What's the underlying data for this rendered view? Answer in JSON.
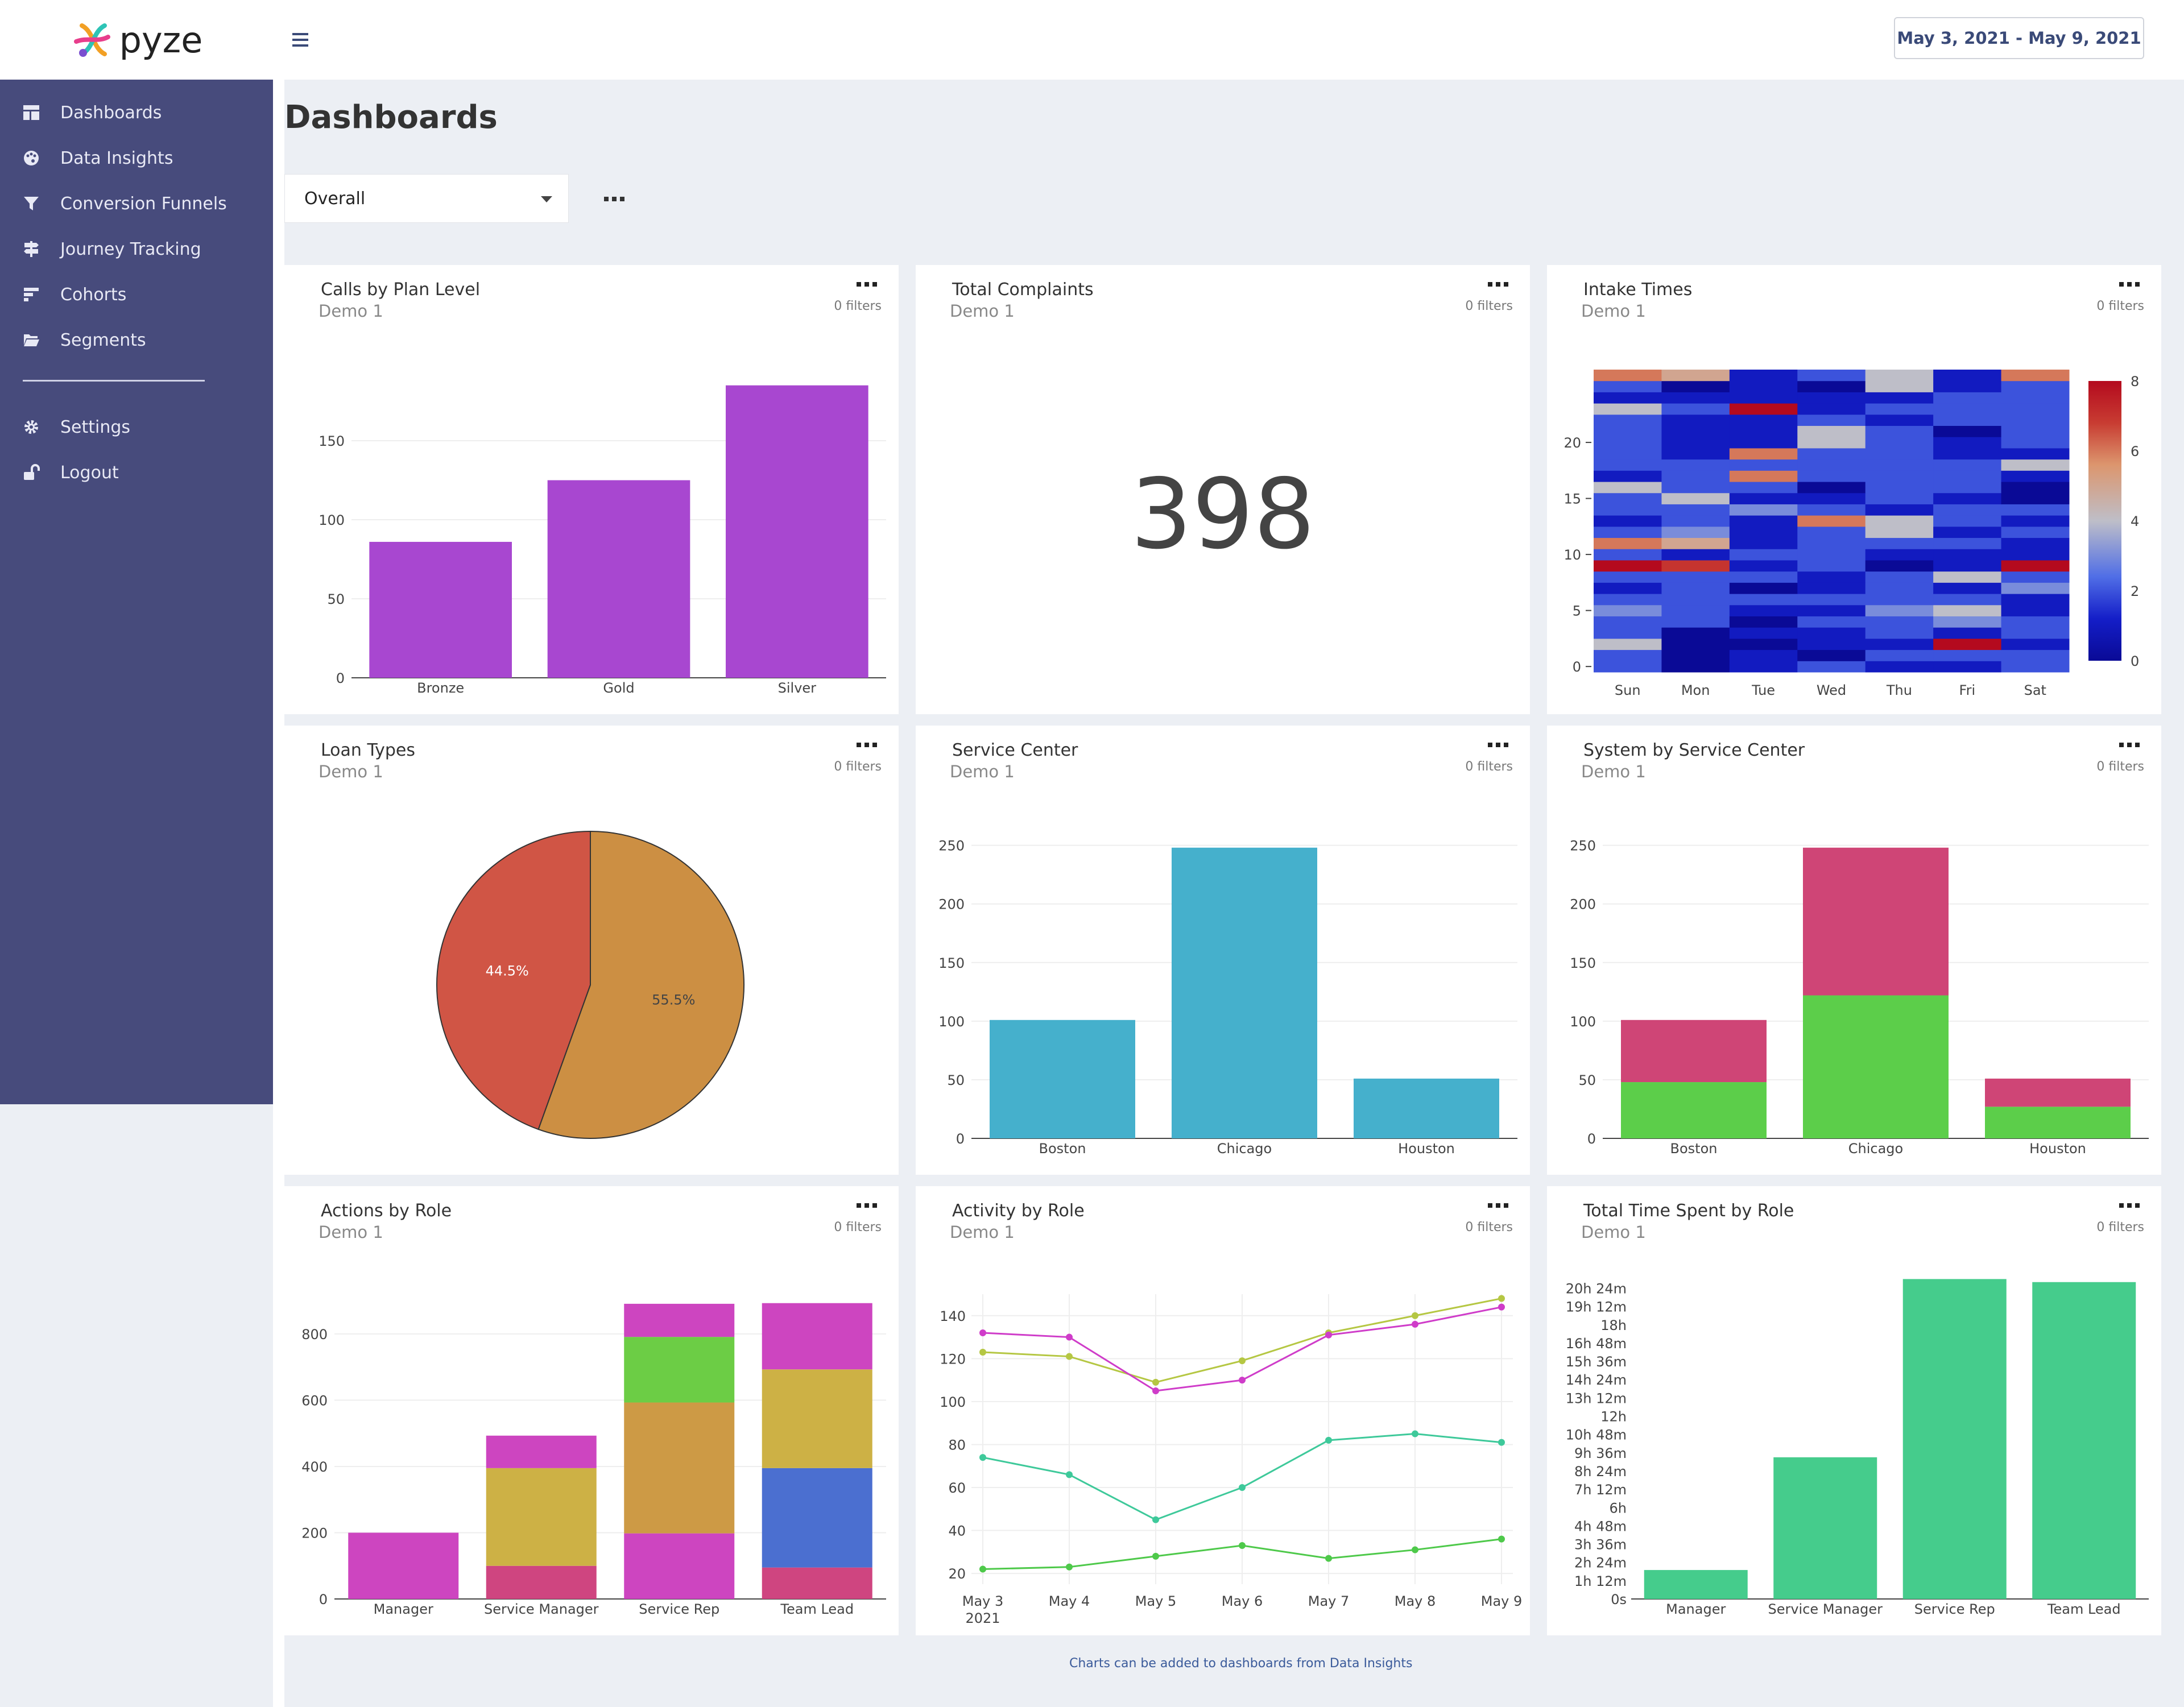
{
  "app": {
    "name": "pyze"
  },
  "sidebar": {
    "items": [
      {
        "label": "Dashboards",
        "icon": "dashboard-icon"
      },
      {
        "label": "Data Insights",
        "icon": "palette-icon"
      },
      {
        "label": "Conversion Funnels",
        "icon": "funnel-icon"
      },
      {
        "label": "Journey Tracking",
        "icon": "signpost-icon"
      },
      {
        "label": "Cohorts",
        "icon": "cohorts-icon"
      },
      {
        "label": "Segments",
        "icon": "folder-open-icon"
      }
    ],
    "bottom_items": [
      {
        "label": "Settings",
        "icon": "gear-icon"
      },
      {
        "label": "Logout",
        "icon": "unlock-icon"
      }
    ]
  },
  "header": {
    "date_range": "May 3, 2021 - May 9, 2021",
    "title": "Dashboards"
  },
  "view_select": {
    "value": "Overall"
  },
  "footer_note": "Charts can be added to dashboards from Data Insights",
  "cards": [
    {
      "title": "Calls by Plan Level",
      "subtitle": "Demo 1",
      "filters": "0 filters"
    },
    {
      "title": "Total Complaints",
      "subtitle": "Demo 1",
      "filters": "0 filters",
      "value": "398"
    },
    {
      "title": "Intake Times",
      "subtitle": "Demo 1",
      "filters": "0 filters"
    },
    {
      "title": "Loan Types",
      "subtitle": "Demo 1",
      "filters": "0 filters"
    },
    {
      "title": "Service Center",
      "subtitle": "Demo 1",
      "filters": "0 filters"
    },
    {
      "title": "System by Service Center",
      "subtitle": "Demo 1",
      "filters": "0 filters"
    },
    {
      "title": "Actions by Role",
      "subtitle": "Demo 1",
      "filters": "0 filters"
    },
    {
      "title": "Activity by Role",
      "subtitle": "Demo 1",
      "filters": "0 filters"
    },
    {
      "title": "Total Time Spent by Role",
      "subtitle": "Demo 1",
      "filters": "0 filters"
    }
  ],
  "chart_data": [
    {
      "type": "bar",
      "categories": [
        "Bronze",
        "Gold",
        "Silver"
      ],
      "values": [
        86,
        125,
        185
      ],
      "ylim": [
        0,
        200
      ],
      "yticks": [
        0,
        50,
        100,
        150
      ],
      "color": "#a847d0"
    },
    {
      "type": "heatmap",
      "x": [
        "Sun",
        "Mon",
        "Tue",
        "Wed",
        "Thu",
        "Fri",
        "Sat"
      ],
      "yticks": [
        0,
        5,
        10,
        15,
        20
      ],
      "colorbar_ticks": [
        0,
        2,
        4,
        6,
        8
      ],
      "zlim": [
        0,
        8
      ],
      "z": [
        [
          2,
          0,
          1,
          2,
          1,
          1,
          2
        ],
        [
          2,
          0,
          1,
          0,
          2,
          2,
          2
        ],
        [
          4,
          0,
          0,
          1,
          1,
          8,
          1
        ],
        [
          2,
          0,
          1,
          1,
          2,
          1,
          2
        ],
        [
          2,
          2,
          0,
          2,
          2,
          3,
          2
        ],
        [
          3,
          2,
          1,
          1,
          3,
          4,
          1
        ],
        [
          2,
          2,
          2,
          2,
          2,
          2,
          1
        ],
        [
          1,
          2,
          0,
          1,
          2,
          1,
          3
        ],
        [
          2,
          2,
          2,
          1,
          2,
          4,
          2
        ],
        [
          8,
          7,
          1,
          2,
          0,
          1,
          8
        ],
        [
          2,
          1,
          2,
          2,
          1,
          1,
          1
        ],
        [
          6,
          5,
          1,
          2,
          2,
          2,
          1
        ],
        [
          2,
          3,
          1,
          2,
          4,
          1,
          2
        ],
        [
          1,
          2,
          1,
          6,
          4,
          2,
          1
        ],
        [
          2,
          2,
          3,
          2,
          1,
          2,
          2
        ],
        [
          2,
          4,
          1,
          1,
          2,
          1,
          0
        ],
        [
          4,
          2,
          2,
          0,
          2,
          2,
          0
        ],
        [
          1,
          2,
          6,
          2,
          2,
          2,
          1
        ],
        [
          2,
          2,
          2,
          2,
          2,
          2,
          4
        ],
        [
          2,
          1,
          6,
          2,
          2,
          1,
          1
        ],
        [
          2,
          1,
          1,
          4,
          2,
          1,
          2
        ],
        [
          2,
          1,
          1,
          4,
          2,
          0,
          2
        ],
        [
          2,
          1,
          1,
          2,
          1,
          2,
          2
        ],
        [
          4,
          2,
          8,
          1,
          2,
          2,
          2
        ],
        [
          1,
          1,
          1,
          1,
          1,
          2,
          2
        ],
        [
          2,
          0,
          1,
          0,
          4,
          1,
          2
        ],
        [
          6,
          5,
          1,
          2,
          4,
          1,
          6
        ]
      ]
    },
    {
      "type": "pie",
      "labels": [
        "44.5%",
        "55.5%"
      ],
      "values": [
        44.5,
        55.5
      ],
      "colors": [
        "#d05545",
        "#cc8f43"
      ]
    },
    {
      "type": "bar",
      "categories": [
        "Boston",
        "Chicago",
        "Houston"
      ],
      "values": [
        101,
        248,
        51
      ],
      "ylim": [
        0,
        260
      ],
      "yticks": [
        0,
        50,
        100,
        150,
        200,
        250
      ],
      "color": "#45b0cc"
    },
    {
      "type": "bar",
      "stacked": true,
      "categories": [
        "Boston",
        "Chicago",
        "Houston"
      ],
      "ylim": [
        0,
        260
      ],
      "yticks": [
        0,
        50,
        100,
        150,
        200,
        250
      ],
      "series": [
        {
          "values": [
            48,
            122,
            27
          ],
          "color": "#5cce4a"
        },
        {
          "values": [
            53,
            126,
            24
          ],
          "color": "#cf4576"
        }
      ]
    },
    {
      "type": "bar",
      "stacked": true,
      "categories": [
        "Manager",
        "Service Manager",
        "Service Rep",
        "Team Lead"
      ],
      "ylim": [
        0,
        920
      ],
      "yticks": [
        0,
        200,
        400,
        600,
        800
      ],
      "series": [
        {
          "values": [
            0,
            100,
            0,
            95
          ],
          "color": "#cf4580"
        },
        {
          "values": [
            200,
            0,
            198,
            0
          ],
          "color": "#cd45c0"
        },
        {
          "values": [
            0,
            0,
            0,
            300
          ],
          "color": "#4b6fd0"
        },
        {
          "values": [
            0,
            0,
            395,
            0
          ],
          "color": "#cd9a45"
        },
        {
          "values": [
            0,
            295,
            0,
            298
          ],
          "color": "#cdb145"
        },
        {
          "values": [
            0,
            0,
            198,
            0
          ],
          "color": "#6ccd45"
        },
        {
          "values": [
            0,
            98,
            100,
            200
          ],
          "color": "#cd45c0"
        }
      ]
    },
    {
      "type": "line",
      "x": [
        "May 3",
        "May 4",
        "May 5",
        "May 6",
        "May 7",
        "May 8",
        "May 9"
      ],
      "x_year": "2021",
      "ylim": [
        15,
        150
      ],
      "yticks": [
        20,
        40,
        60,
        80,
        100,
        120,
        140
      ],
      "series": [
        {
          "values": [
            123,
            121,
            109,
            119,
            132,
            140,
            148
          ],
          "color": "#b5c743"
        },
        {
          "values": [
            132,
            130,
            105,
            110,
            131,
            136,
            144
          ],
          "color": "#cf3cc9"
        },
        {
          "values": [
            74,
            66,
            45,
            60,
            82,
            85,
            81
          ],
          "color": "#3ec99a"
        },
        {
          "values": [
            22,
            23,
            28,
            33,
            27,
            31,
            36
          ],
          "color": "#4ec94a"
        }
      ]
    },
    {
      "type": "bar",
      "categories": [
        "Manager",
        "Service Manager",
        "Service Rep",
        "Team Lead"
      ],
      "values": [
        1.9,
        9.3,
        21.0,
        20.8
      ],
      "value_unit": "hours",
      "ylim": [
        0,
        21.5
      ],
      "yticks": [
        "0s",
        "1h 12m",
        "2h 24m",
        "3h 36m",
        "4h 48m",
        "6h",
        "7h 12m",
        "8h 24m",
        "9h 36m",
        "10h 48m",
        "12h",
        "13h 12m",
        "14h 24m",
        "15h 36m",
        "16h 48m",
        "18h",
        "19h 12m",
        "20h 24m"
      ],
      "color": "#45cc8c"
    }
  ]
}
